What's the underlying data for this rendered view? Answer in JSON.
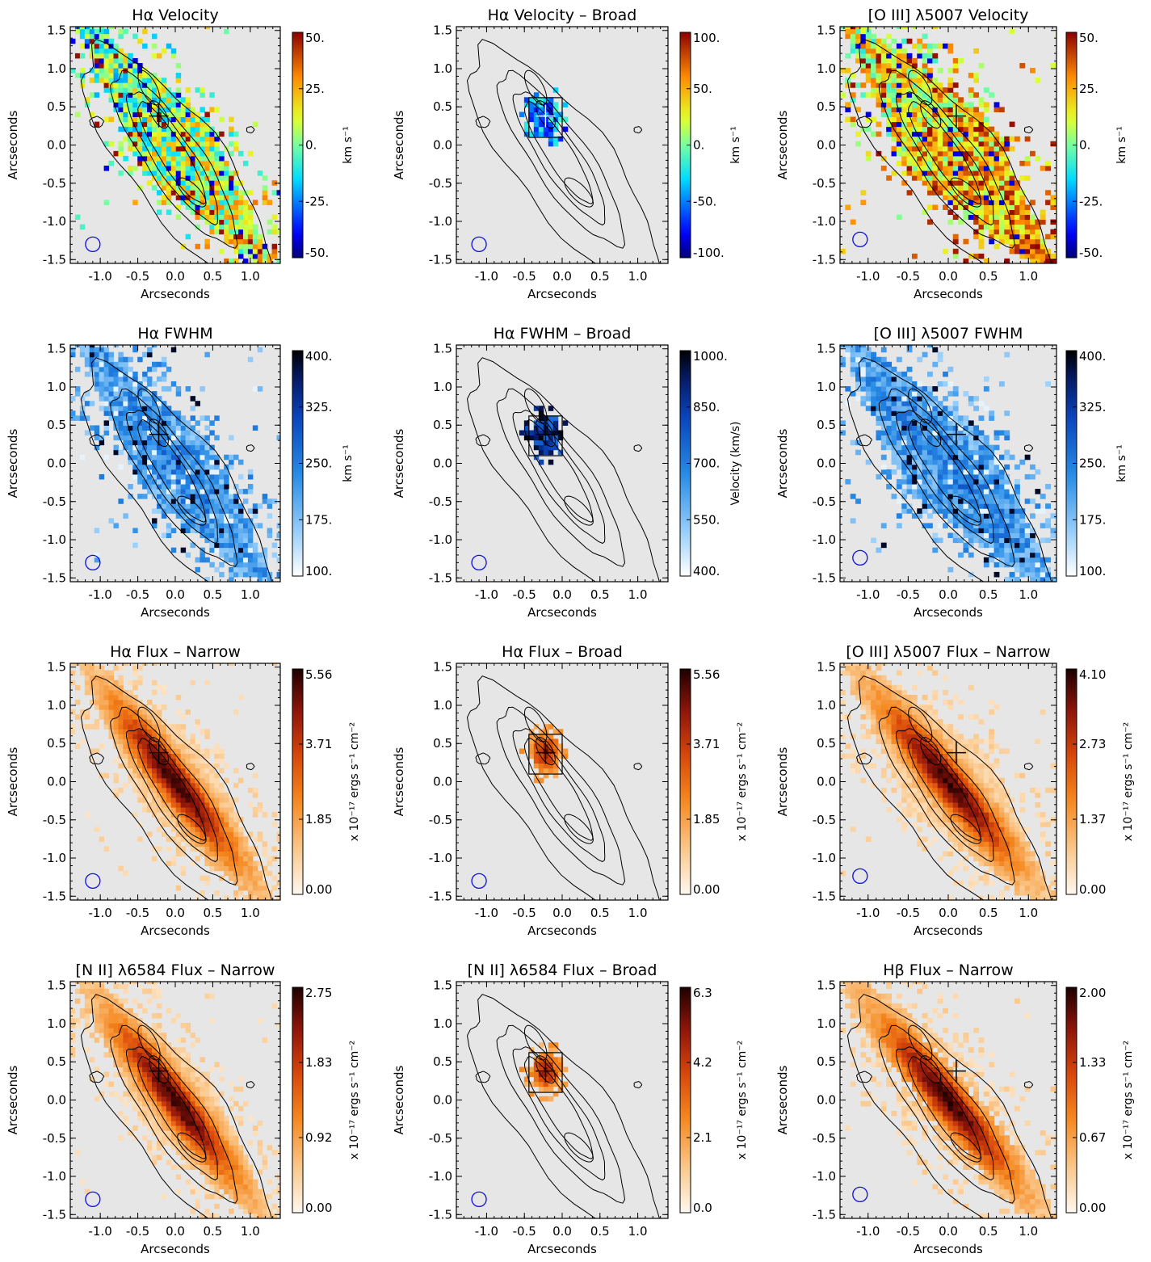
{
  "figure": {
    "x_axis_label": "Arcseconds",
    "y_axis_label": "Arcseconds",
    "x_ticks": [
      "-1.0",
      "-0.5",
      "0.0",
      "0.5",
      "1.0"
    ],
    "y_ticks": [
      "-1.5",
      "-1.0",
      "-0.5",
      "0.0",
      "0.5",
      "1.0",
      "1.5"
    ]
  },
  "chart_data": [
    {
      "type": "heatmap",
      "title": "Hα Velocity",
      "colormap": "jet",
      "cbar_label": "km s⁻¹",
      "cbar_ticks": [
        "50.",
        "25.",
        "0.",
        "-25.",
        "-50."
      ],
      "vrange": [
        -50,
        50
      ],
      "xlim": [
        -1.4,
        1.4
      ],
      "ylim": [
        -1.55,
        1.55
      ],
      "broad_box": false
    },
    {
      "type": "heatmap",
      "title": "Hα Velocity – Broad",
      "colormap": "jet",
      "cbar_label": "km s⁻¹",
      "cbar_ticks": [
        "100.",
        "50.",
        "0.",
        "-50.",
        "-100."
      ],
      "vrange": [
        -100,
        100
      ],
      "xlim": [
        -1.4,
        1.4
      ],
      "ylim": [
        -1.55,
        1.55
      ],
      "broad_box": true
    },
    {
      "type": "heatmap",
      "title": "[O III] λ5007 Velocity",
      "colormap": "jet",
      "cbar_label": "km s⁻¹",
      "cbar_ticks": [
        "50.",
        "25.",
        "0.",
        "-25.",
        "-50."
      ],
      "vrange": [
        -50,
        50
      ],
      "xlim": [
        -1.35,
        1.35
      ],
      "ylim": [
        -1.55,
        1.55
      ],
      "broad_box": false
    },
    {
      "type": "heatmap",
      "title": "Hα FWHM",
      "colormap": "blues",
      "cbar_label": "km s⁻¹",
      "cbar_ticks": [
        "400.",
        "325.",
        "250.",
        "175.",
        "100."
      ],
      "vrange": [
        100,
        400
      ],
      "xlim": [
        -1.4,
        1.4
      ],
      "ylim": [
        -1.55,
        1.55
      ],
      "broad_box": false
    },
    {
      "type": "heatmap",
      "title": "Hα FWHM – Broad",
      "colormap": "blues",
      "cbar_label": "Velocity (km/s)",
      "cbar_ticks": [
        "1000.",
        "850.",
        "700.",
        "550.",
        "400."
      ],
      "vrange": [
        400,
        1000
      ],
      "xlim": [
        -1.4,
        1.4
      ],
      "ylim": [
        -1.55,
        1.55
      ],
      "broad_box": true
    },
    {
      "type": "heatmap",
      "title": "[O III] λ5007 FWHM",
      "colormap": "blues",
      "cbar_label": "km s⁻¹",
      "cbar_ticks": [
        "400.",
        "325.",
        "250.",
        "175.",
        "100."
      ],
      "vrange": [
        100,
        400
      ],
      "xlim": [
        -1.35,
        1.35
      ],
      "ylim": [
        -1.55,
        1.55
      ],
      "broad_box": false
    },
    {
      "type": "heatmap",
      "title": "Hα Flux – Narrow",
      "colormap": "hot",
      "cbar_label": "x 10⁻¹⁷ ergs s⁻¹ cm⁻²",
      "cbar_ticks": [
        "5.56",
        "3.71",
        "1.85",
        "0.00"
      ],
      "vrange": [
        0,
        5.56
      ],
      "xlim": [
        -1.4,
        1.4
      ],
      "ylim": [
        -1.55,
        1.55
      ],
      "broad_box": false
    },
    {
      "type": "heatmap",
      "title": "Hα Flux – Broad",
      "colormap": "hot",
      "cbar_label": "x 10⁻¹⁷ ergs s⁻¹ cm⁻²",
      "cbar_ticks": [
        "5.56",
        "3.71",
        "1.85",
        "0.00"
      ],
      "vrange": [
        0,
        5.56
      ],
      "xlim": [
        -1.4,
        1.4
      ],
      "ylim": [
        -1.55,
        1.55
      ],
      "broad_box": true
    },
    {
      "type": "heatmap",
      "title": "[O III] λ5007 Flux – Narrow",
      "colormap": "hot",
      "cbar_label": "x 10⁻¹⁷ ergs s⁻¹ cm⁻²",
      "cbar_ticks": [
        "4.10",
        "2.73",
        "1.37",
        "0.00"
      ],
      "vrange": [
        0,
        4.1
      ],
      "xlim": [
        -1.35,
        1.35
      ],
      "ylim": [
        -1.55,
        1.55
      ],
      "broad_box": false
    },
    {
      "type": "heatmap",
      "title": "[N II] λ6584 Flux – Narrow",
      "colormap": "hot",
      "cbar_label": "x 10⁻¹⁷ ergs s⁻¹ cm⁻²",
      "cbar_ticks": [
        "2.75",
        "1.83",
        "0.92",
        "0.00"
      ],
      "vrange": [
        0,
        2.75
      ],
      "xlim": [
        -1.4,
        1.4
      ],
      "ylim": [
        -1.55,
        1.55
      ],
      "broad_box": false
    },
    {
      "type": "heatmap",
      "title": "[N II] λ6584 Flux – Broad",
      "colormap": "hot",
      "cbar_label": "x 10⁻¹⁷ ergs s⁻¹ cm⁻²",
      "cbar_ticks": [
        "6.3",
        "4.2",
        "2.1",
        "0.0"
      ],
      "vrange": [
        0,
        6.3
      ],
      "xlim": [
        -1.4,
        1.4
      ],
      "ylim": [
        -1.55,
        1.55
      ],
      "broad_box": true
    },
    {
      "type": "heatmap",
      "title": "Hβ Flux – Narrow",
      "colormap": "hot",
      "cbar_label": "x 10⁻¹⁷ ergs s⁻¹ cm⁻²",
      "cbar_ticks": [
        "2.00",
        "1.33",
        "0.67",
        "0.00"
      ],
      "vrange": [
        0,
        2.0
      ],
      "xlim": [
        -1.35,
        1.35
      ],
      "ylim": [
        -1.55,
        1.55
      ],
      "broad_box": false
    }
  ]
}
